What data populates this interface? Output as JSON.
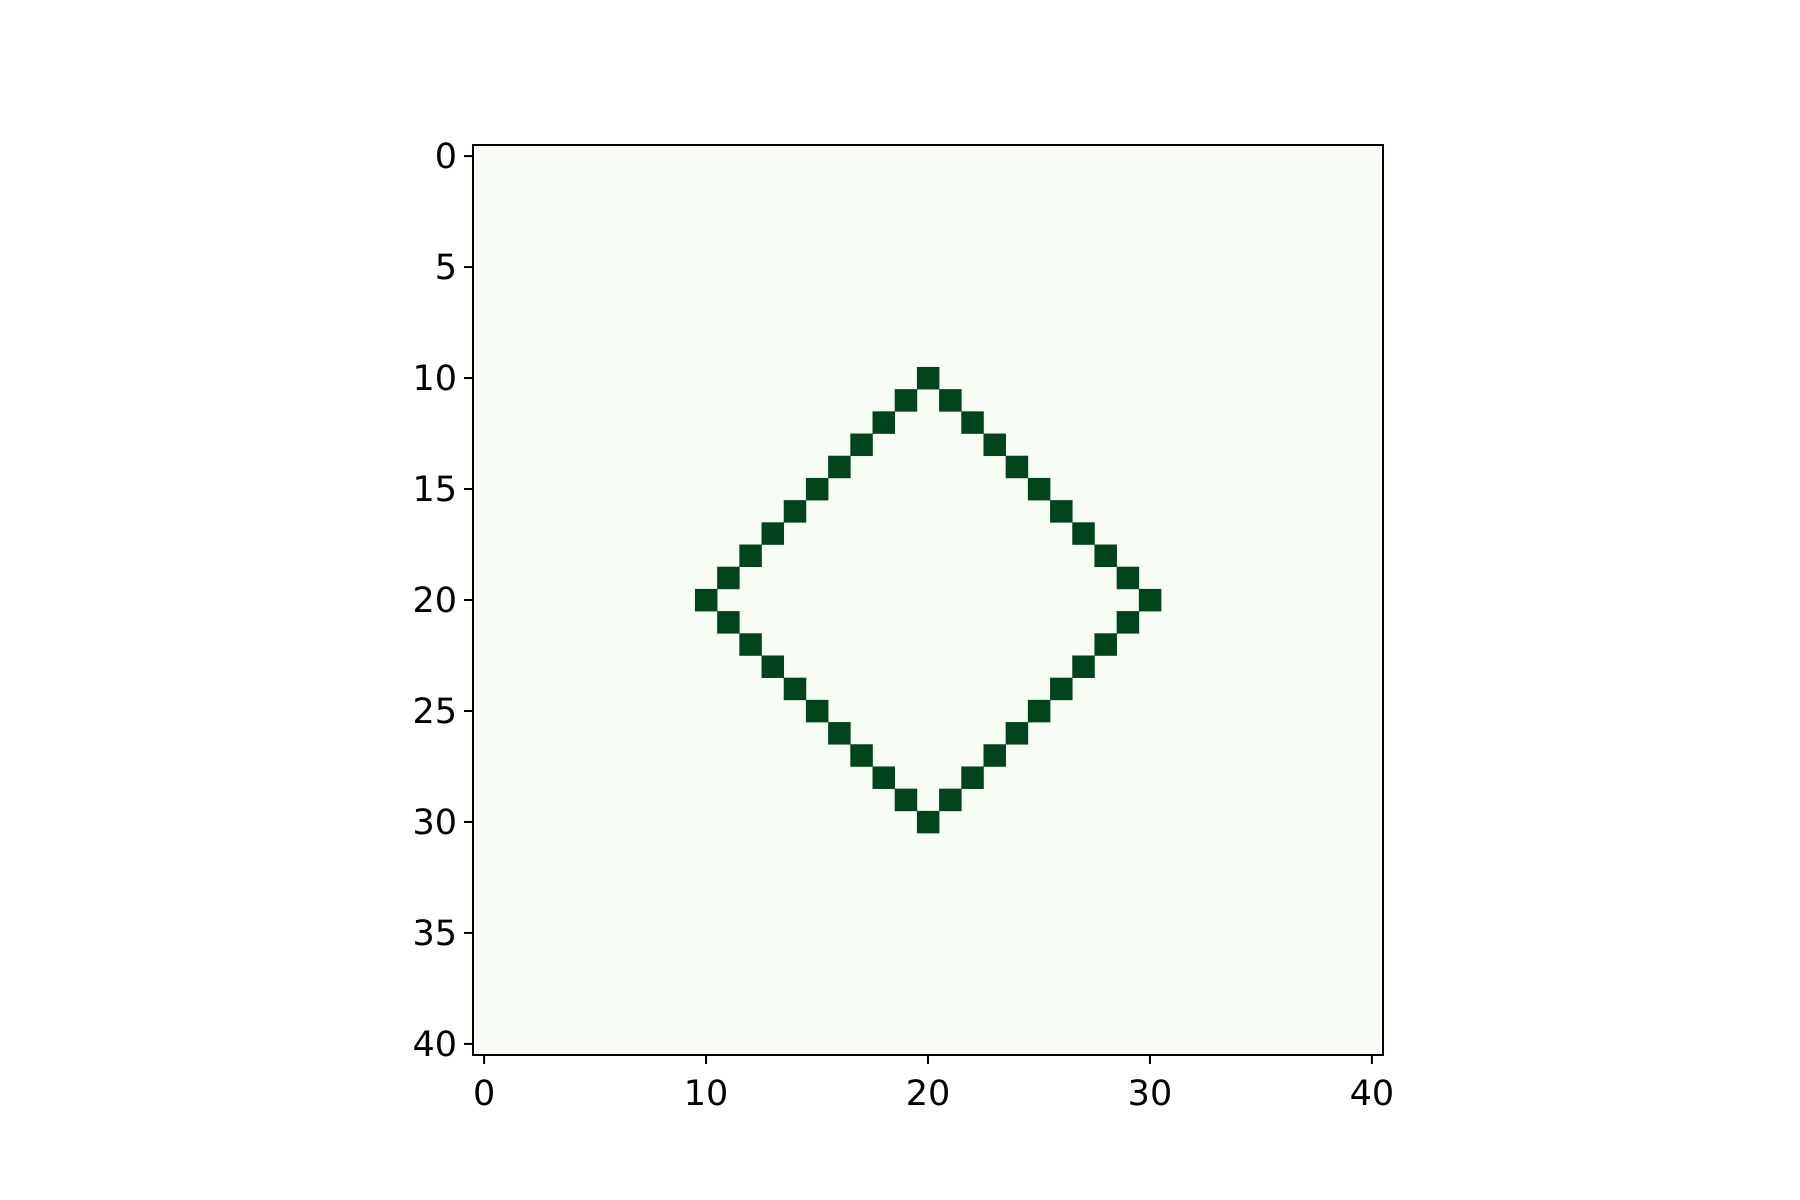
{
  "chart_data": {
    "type": "heatmap",
    "title": "",
    "xlabel": "",
    "ylabel": "",
    "grid_shape": [
      41,
      41
    ],
    "xlim": [
      -0.5,
      40.5
    ],
    "ylim": [
      40.5,
      -0.5
    ],
    "y_inverted": true,
    "grid": false,
    "colormap": "Greens",
    "colors": {
      "background": "#f7fcf5",
      "filled": "#00441b",
      "axes": "#000000"
    },
    "x_ticks": [
      0,
      10,
      20,
      30,
      40
    ],
    "x_tick_labels": [
      "0",
      "10",
      "20",
      "30",
      "40"
    ],
    "y_ticks": [
      0,
      5,
      10,
      15,
      20,
      25,
      30,
      35,
      40
    ],
    "y_tick_labels": [
      "0",
      "5",
      "10",
      "15",
      "20",
      "25",
      "30",
      "35",
      "40"
    ],
    "filled_cells": [
      [
        20,
        10
      ],
      [
        19,
        11
      ],
      [
        21,
        11
      ],
      [
        18,
        12
      ],
      [
        22,
        12
      ],
      [
        17,
        13
      ],
      [
        23,
        13
      ],
      [
        16,
        14
      ],
      [
        24,
        14
      ],
      [
        15,
        15
      ],
      [
        25,
        15
      ],
      [
        14,
        16
      ],
      [
        26,
        16
      ],
      [
        13,
        17
      ],
      [
        27,
        17
      ],
      [
        12,
        18
      ],
      [
        28,
        18
      ],
      [
        11,
        19
      ],
      [
        29,
        19
      ],
      [
        10,
        20
      ],
      [
        30,
        20
      ],
      [
        11,
        21
      ],
      [
        29,
        21
      ],
      [
        12,
        22
      ],
      [
        28,
        22
      ],
      [
        13,
        23
      ],
      [
        27,
        23
      ],
      [
        14,
        24
      ],
      [
        26,
        24
      ],
      [
        15,
        25
      ],
      [
        25,
        25
      ],
      [
        16,
        26
      ],
      [
        24,
        26
      ],
      [
        17,
        27
      ],
      [
        23,
        27
      ],
      [
        18,
        28
      ],
      [
        22,
        28
      ],
      [
        19,
        29
      ],
      [
        21,
        29
      ],
      [
        20,
        30
      ]
    ]
  }
}
